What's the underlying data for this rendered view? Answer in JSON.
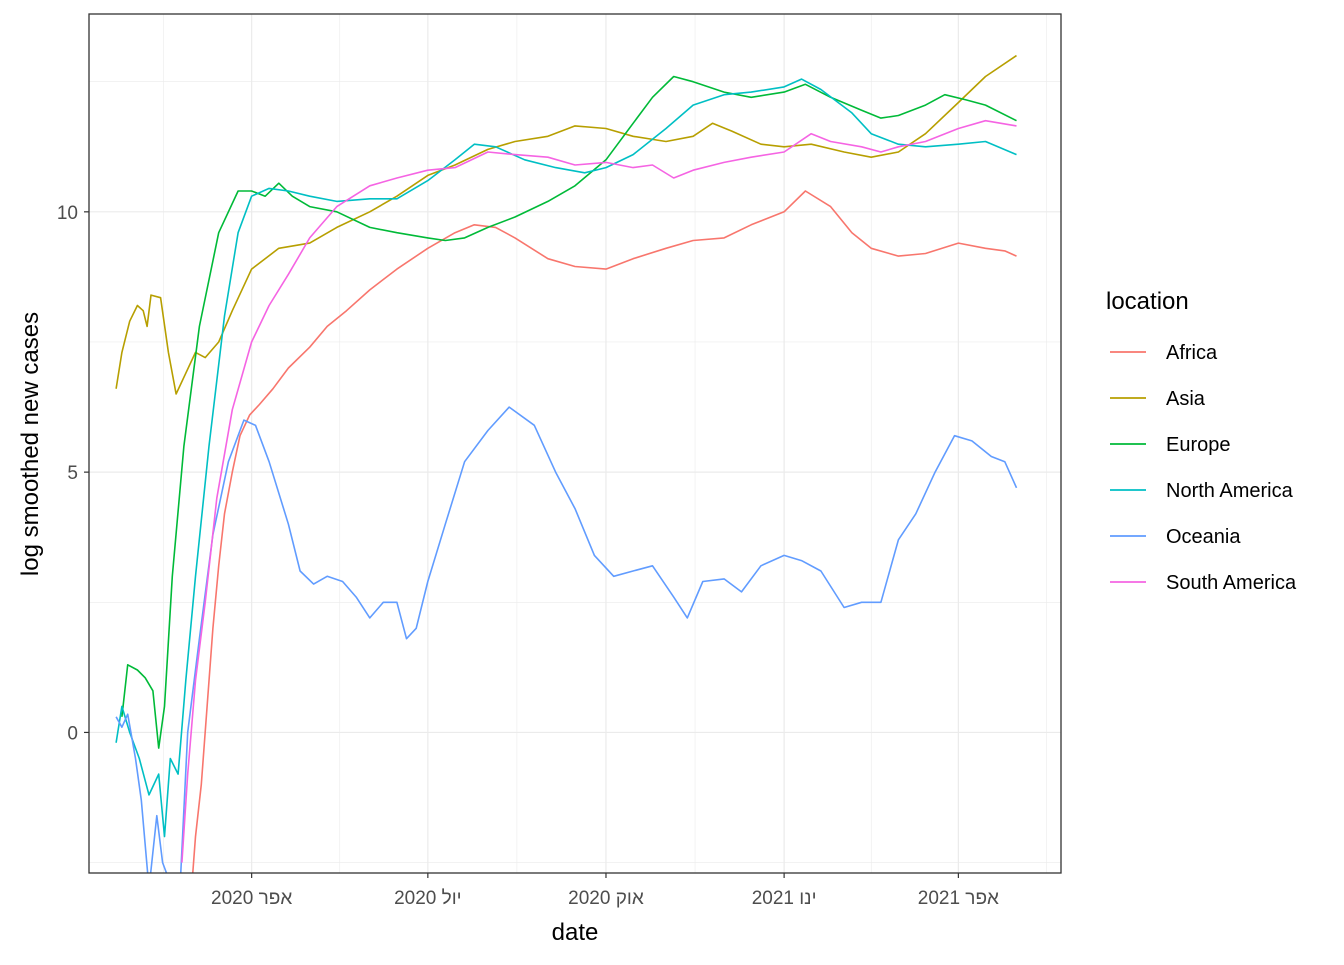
{
  "chart_data": {
    "type": "line",
    "title": "",
    "xlabel": "date",
    "ylabel": "log smoothed new cases",
    "x_range": [
      "2020-01-08",
      "2021-05-24"
    ],
    "ylim": [
      -2.7,
      13.8
    ],
    "x_ticks": [
      {
        "date": "2020-04-01",
        "label": "אפר 2020"
      },
      {
        "date": "2020-07-01",
        "label": "יול 2020"
      },
      {
        "date": "2020-10-01",
        "label": "אוק 2020"
      },
      {
        "date": "2021-01-01",
        "label": "ינו 2021"
      },
      {
        "date": "2021-04-01",
        "label": "אפר 2021"
      }
    ],
    "y_ticks": [
      0,
      5,
      10
    ],
    "grid": true,
    "legend": {
      "title": "location",
      "placement": "right"
    },
    "series": [
      {
        "name": "Africa",
        "color": "#F8766D",
        "points": [
          [
            "2020-03-01",
            -3
          ],
          [
            "2020-03-03",
            -2
          ],
          [
            "2020-03-06",
            -1
          ],
          [
            "2020-03-09",
            0.5
          ],
          [
            "2020-03-12",
            2
          ],
          [
            "2020-03-15",
            3.2
          ],
          [
            "2020-03-18",
            4.2
          ],
          [
            "2020-03-22",
            5
          ],
          [
            "2020-03-26",
            5.7
          ],
          [
            "2020-03-31",
            6.1
          ],
          [
            "2020-04-05",
            6.3
          ],
          [
            "2020-04-12",
            6.6
          ],
          [
            "2020-04-20",
            7
          ],
          [
            "2020-05-01",
            7.4
          ],
          [
            "2020-05-10",
            7.8
          ],
          [
            "2020-05-20",
            8.1
          ],
          [
            "2020-06-01",
            8.5
          ],
          [
            "2020-06-15",
            8.9
          ],
          [
            "2020-07-01",
            9.3
          ],
          [
            "2020-07-15",
            9.6
          ],
          [
            "2020-07-25",
            9.75
          ],
          [
            "2020-08-05",
            9.7
          ],
          [
            "2020-08-15",
            9.5
          ],
          [
            "2020-09-01",
            9.1
          ],
          [
            "2020-09-15",
            8.95
          ],
          [
            "2020-10-01",
            8.9
          ],
          [
            "2020-10-15",
            9.1
          ],
          [
            "2020-11-01",
            9.3
          ],
          [
            "2020-11-15",
            9.45
          ],
          [
            "2020-12-01",
            9.5
          ],
          [
            "2020-12-15",
            9.75
          ],
          [
            "2021-01-01",
            10
          ],
          [
            "2021-01-12",
            10.4
          ],
          [
            "2021-01-25",
            10.1
          ],
          [
            "2021-02-05",
            9.6
          ],
          [
            "2021-02-15",
            9.3
          ],
          [
            "2021-03-01",
            9.15
          ],
          [
            "2021-03-15",
            9.2
          ],
          [
            "2021-04-01",
            9.4
          ],
          [
            "2021-04-15",
            9.3
          ],
          [
            "2021-04-25",
            9.25
          ],
          [
            "2021-05-01",
            9.15
          ]
        ]
      },
      {
        "name": "Asia",
        "color": "#B79F00",
        "points": [
          [
            "2020-01-22",
            6.6
          ],
          [
            "2020-01-25",
            7.3
          ],
          [
            "2020-01-29",
            7.9
          ],
          [
            "2020-02-02",
            8.2
          ],
          [
            "2020-02-05",
            8.1
          ],
          [
            "2020-02-07",
            7.8
          ],
          [
            "2020-02-09",
            8.4
          ],
          [
            "2020-02-14",
            8.35
          ],
          [
            "2020-02-18",
            7.3
          ],
          [
            "2020-02-22",
            6.5
          ],
          [
            "2020-02-27",
            6.9
          ],
          [
            "2020-03-03",
            7.3
          ],
          [
            "2020-03-08",
            7.2
          ],
          [
            "2020-03-15",
            7.5
          ],
          [
            "2020-03-22",
            8.1
          ],
          [
            "2020-04-01",
            8.9
          ],
          [
            "2020-04-15",
            9.3
          ],
          [
            "2020-05-01",
            9.4
          ],
          [
            "2020-05-15",
            9.7
          ],
          [
            "2020-06-01",
            10
          ],
          [
            "2020-06-15",
            10.3
          ],
          [
            "2020-07-01",
            10.7
          ],
          [
            "2020-07-15",
            10.9
          ],
          [
            "2020-08-01",
            11.2
          ],
          [
            "2020-08-15",
            11.35
          ],
          [
            "2020-09-01",
            11.45
          ],
          [
            "2020-09-15",
            11.65
          ],
          [
            "2020-10-01",
            11.6
          ],
          [
            "2020-10-15",
            11.45
          ],
          [
            "2020-11-01",
            11.35
          ],
          [
            "2020-11-15",
            11.45
          ],
          [
            "2020-11-25",
            11.7
          ],
          [
            "2020-12-05",
            11.55
          ],
          [
            "2020-12-20",
            11.3
          ],
          [
            "2021-01-01",
            11.25
          ],
          [
            "2021-01-15",
            11.3
          ],
          [
            "2021-02-01",
            11.15
          ],
          [
            "2021-02-15",
            11.05
          ],
          [
            "2021-03-01",
            11.15
          ],
          [
            "2021-03-15",
            11.5
          ],
          [
            "2021-04-01",
            12.1
          ],
          [
            "2021-04-15",
            12.6
          ],
          [
            "2021-05-01",
            13.0
          ]
        ]
      },
      {
        "name": "Europe",
        "color": "#00BA38",
        "points": [
          [
            "2020-01-25",
            0.3
          ],
          [
            "2020-01-28",
            1.3
          ],
          [
            "2020-02-02",
            1.2
          ],
          [
            "2020-02-06",
            1.05
          ],
          [
            "2020-02-10",
            0.8
          ],
          [
            "2020-02-13",
            -0.3
          ],
          [
            "2020-02-16",
            0.5
          ],
          [
            "2020-02-20",
            3
          ],
          [
            "2020-02-26",
            5.5
          ],
          [
            "2020-03-05",
            7.8
          ],
          [
            "2020-03-15",
            9.6
          ],
          [
            "2020-03-25",
            10.4
          ],
          [
            "2020-04-01",
            10.4
          ],
          [
            "2020-04-08",
            10.3
          ],
          [
            "2020-04-15",
            10.55
          ],
          [
            "2020-04-22",
            10.3
          ],
          [
            "2020-05-01",
            10.1
          ],
          [
            "2020-05-15",
            10
          ],
          [
            "2020-06-01",
            9.7
          ],
          [
            "2020-06-15",
            9.6
          ],
          [
            "2020-07-01",
            9.5
          ],
          [
            "2020-07-10",
            9.45
          ],
          [
            "2020-07-20",
            9.5
          ],
          [
            "2020-08-01",
            9.7
          ],
          [
            "2020-08-15",
            9.9
          ],
          [
            "2020-09-01",
            10.2
          ],
          [
            "2020-09-15",
            10.5
          ],
          [
            "2020-10-01",
            11
          ],
          [
            "2020-10-15",
            11.7
          ],
          [
            "2020-10-25",
            12.2
          ],
          [
            "2020-11-05",
            12.6
          ],
          [
            "2020-11-15",
            12.5
          ],
          [
            "2020-12-01",
            12.3
          ],
          [
            "2020-12-15",
            12.2
          ],
          [
            "2021-01-01",
            12.3
          ],
          [
            "2021-01-12",
            12.45
          ],
          [
            "2021-01-25",
            12.2
          ],
          [
            "2021-02-10",
            11.95
          ],
          [
            "2021-02-20",
            11.8
          ],
          [
            "2021-03-01",
            11.85
          ],
          [
            "2021-03-15",
            12.05
          ],
          [
            "2021-03-25",
            12.25
          ],
          [
            "2021-04-05",
            12.15
          ],
          [
            "2021-04-15",
            12.05
          ],
          [
            "2021-05-01",
            11.75
          ]
        ]
      },
      {
        "name": "North America",
        "color": "#00BFC4",
        "points": [
          [
            "2020-01-22",
            -0.2
          ],
          [
            "2020-01-25",
            0.5
          ],
          [
            "2020-01-29",
            0
          ],
          [
            "2020-02-03",
            -0.5
          ],
          [
            "2020-02-08",
            -1.2
          ],
          [
            "2020-02-13",
            -0.8
          ],
          [
            "2020-02-16",
            -2
          ],
          [
            "2020-02-19",
            -0.5
          ],
          [
            "2020-02-23",
            -0.8
          ],
          [
            "2020-02-27",
            1
          ],
          [
            "2020-03-03",
            3
          ],
          [
            "2020-03-10",
            5.5
          ],
          [
            "2020-03-18",
            8
          ],
          [
            "2020-03-25",
            9.6
          ],
          [
            "2020-04-01",
            10.3
          ],
          [
            "2020-04-10",
            10.45
          ],
          [
            "2020-04-20",
            10.4
          ],
          [
            "2020-05-01",
            10.3
          ],
          [
            "2020-05-15",
            10.2
          ],
          [
            "2020-06-01",
            10.25
          ],
          [
            "2020-06-15",
            10.25
          ],
          [
            "2020-07-01",
            10.6
          ],
          [
            "2020-07-15",
            11
          ],
          [
            "2020-07-25",
            11.3
          ],
          [
            "2020-08-05",
            11.25
          ],
          [
            "2020-08-20",
            11
          ],
          [
            "2020-09-05",
            10.85
          ],
          [
            "2020-09-20",
            10.75
          ],
          [
            "2020-10-01",
            10.85
          ],
          [
            "2020-10-15",
            11.1
          ],
          [
            "2020-11-01",
            11.6
          ],
          [
            "2020-11-15",
            12.05
          ],
          [
            "2020-12-01",
            12.25
          ],
          [
            "2020-12-15",
            12.3
          ],
          [
            "2021-01-01",
            12.4
          ],
          [
            "2021-01-10",
            12.55
          ],
          [
            "2021-01-20",
            12.35
          ],
          [
            "2021-02-05",
            11.9
          ],
          [
            "2021-02-15",
            11.5
          ],
          [
            "2021-03-01",
            11.3
          ],
          [
            "2021-03-15",
            11.25
          ],
          [
            "2021-04-01",
            11.3
          ],
          [
            "2021-04-15",
            11.35
          ],
          [
            "2021-05-01",
            11.1
          ]
        ]
      },
      {
        "name": "Oceania",
        "color": "#619CFF",
        "points": [
          [
            "2020-01-22",
            0.3
          ],
          [
            "2020-01-25",
            0.1
          ],
          [
            "2020-01-28",
            0.35
          ],
          [
            "2020-02-01",
            -0.5
          ],
          [
            "2020-02-04",
            -1.3
          ],
          [
            "2020-02-08",
            -3
          ],
          [
            "2020-02-12",
            -1.6
          ],
          [
            "2020-02-15",
            -2.5
          ],
          [
            "2020-02-20",
            -3
          ],
          [
            "2020-02-24",
            -3
          ],
          [
            "2020-02-28",
            0
          ],
          [
            "2020-03-05",
            1.8
          ],
          [
            "2020-03-12",
            3.8
          ],
          [
            "2020-03-20",
            5.2
          ],
          [
            "2020-03-28",
            6
          ],
          [
            "2020-04-03",
            5.9
          ],
          [
            "2020-04-10",
            5.2
          ],
          [
            "2020-04-20",
            4
          ],
          [
            "2020-04-26",
            3.1
          ],
          [
            "2020-05-03",
            2.85
          ],
          [
            "2020-05-10",
            3
          ],
          [
            "2020-05-18",
            2.9
          ],
          [
            "2020-05-25",
            2.6
          ],
          [
            "2020-06-01",
            2.2
          ],
          [
            "2020-06-08",
            2.5
          ],
          [
            "2020-06-15",
            2.5
          ],
          [
            "2020-06-20",
            1.8
          ],
          [
            "2020-06-25",
            2
          ],
          [
            "2020-07-01",
            2.9
          ],
          [
            "2020-07-10",
            4
          ],
          [
            "2020-07-20",
            5.2
          ],
          [
            "2020-08-01",
            5.8
          ],
          [
            "2020-08-12",
            6.25
          ],
          [
            "2020-08-25",
            5.9
          ],
          [
            "2020-09-05",
            5
          ],
          [
            "2020-09-15",
            4.3
          ],
          [
            "2020-09-25",
            3.4
          ],
          [
            "2020-10-05",
            3
          ],
          [
            "2020-10-15",
            3.1
          ],
          [
            "2020-10-25",
            3.2
          ],
          [
            "2020-11-05",
            2.6
          ],
          [
            "2020-11-12",
            2.2
          ],
          [
            "2020-11-20",
            2.9
          ],
          [
            "2020-12-01",
            2.95
          ],
          [
            "2020-12-10",
            2.7
          ],
          [
            "2020-12-20",
            3.2
          ],
          [
            "2021-01-01",
            3.4
          ],
          [
            "2021-01-10",
            3.3
          ],
          [
            "2021-01-20",
            3.1
          ],
          [
            "2021-02-01",
            2.4
          ],
          [
            "2021-02-10",
            2.5
          ],
          [
            "2021-02-20",
            2.5
          ],
          [
            "2021-03-01",
            3.7
          ],
          [
            "2021-03-10",
            4.2
          ],
          [
            "2021-03-20",
            5
          ],
          [
            "2021-03-30",
            5.7
          ],
          [
            "2021-04-08",
            5.6
          ],
          [
            "2021-04-18",
            5.3
          ],
          [
            "2021-04-25",
            5.2
          ],
          [
            "2021-05-01",
            4.7
          ]
        ]
      },
      {
        "name": "South America",
        "color": "#F564E3",
        "points": [
          [
            "2020-02-25",
            -2.5
          ],
          [
            "2020-02-28",
            -0.8
          ],
          [
            "2020-03-03",
            1
          ],
          [
            "2020-03-08",
            2.5
          ],
          [
            "2020-03-14",
            4.5
          ],
          [
            "2020-03-22",
            6.2
          ],
          [
            "2020-04-01",
            7.5
          ],
          [
            "2020-04-10",
            8.2
          ],
          [
            "2020-04-20",
            8.8
          ],
          [
            "2020-05-01",
            9.5
          ],
          [
            "2020-05-15",
            10.1
          ],
          [
            "2020-06-01",
            10.5
          ],
          [
            "2020-06-15",
            10.65
          ],
          [
            "2020-07-01",
            10.8
          ],
          [
            "2020-07-15",
            10.85
          ],
          [
            "2020-08-01",
            11.15
          ],
          [
            "2020-08-15",
            11.1
          ],
          [
            "2020-09-01",
            11.05
          ],
          [
            "2020-09-15",
            10.9
          ],
          [
            "2020-10-01",
            10.95
          ],
          [
            "2020-10-15",
            10.85
          ],
          [
            "2020-10-25",
            10.9
          ],
          [
            "2020-11-05",
            10.65
          ],
          [
            "2020-11-15",
            10.8
          ],
          [
            "2020-12-01",
            10.95
          ],
          [
            "2020-12-15",
            11.05
          ],
          [
            "2021-01-01",
            11.15
          ],
          [
            "2021-01-15",
            11.5
          ],
          [
            "2021-01-25",
            11.35
          ],
          [
            "2021-02-10",
            11.25
          ],
          [
            "2021-02-20",
            11.15
          ],
          [
            "2021-03-01",
            11.25
          ],
          [
            "2021-03-15",
            11.35
          ],
          [
            "2021-04-01",
            11.6
          ],
          [
            "2021-04-15",
            11.75
          ],
          [
            "2021-05-01",
            11.65
          ]
        ]
      }
    ]
  }
}
